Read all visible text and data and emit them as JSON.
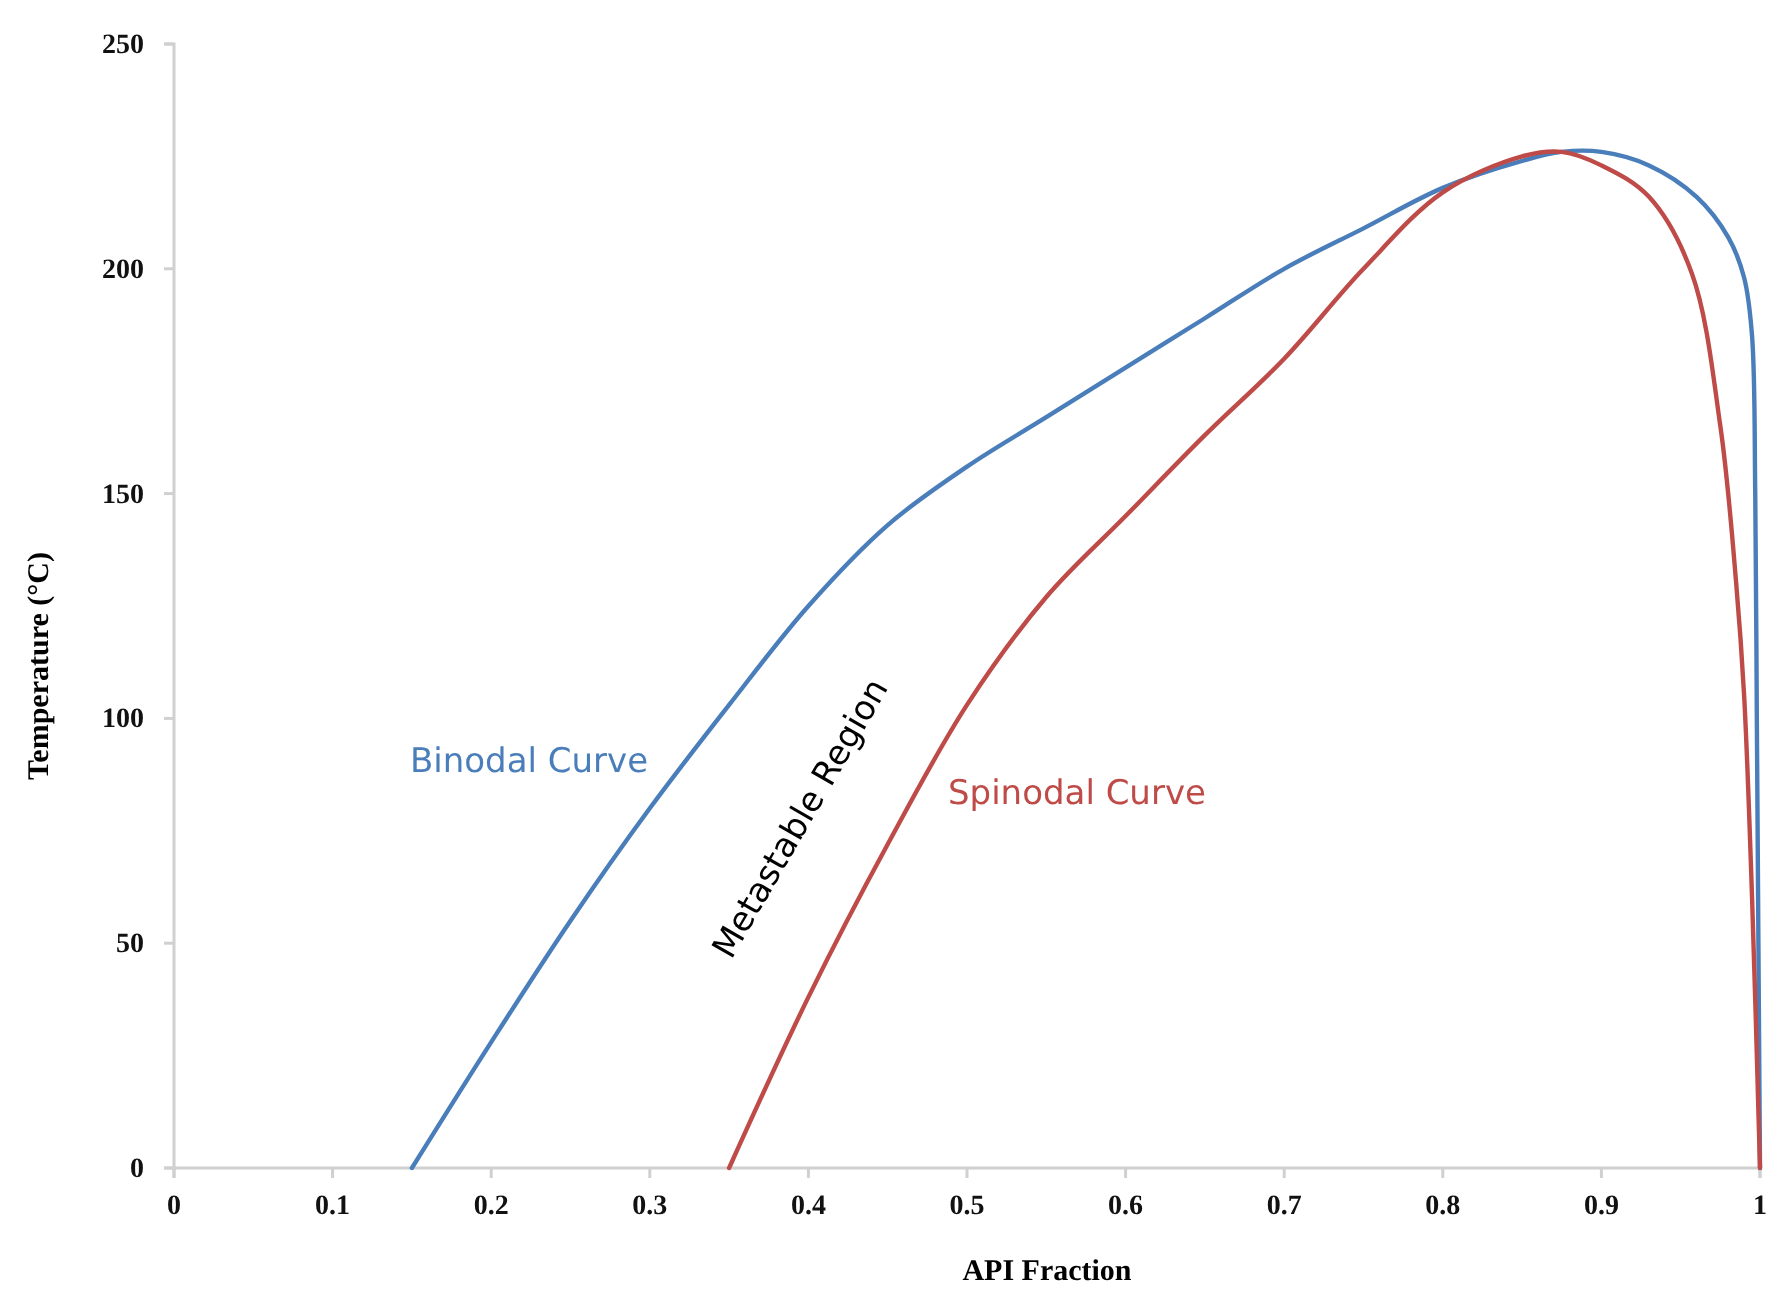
{
  "chart_data": {
    "type": "line",
    "xlabel": "API Fraction",
    "ylabel": "Temperature (°C)",
    "xlim": [
      0,
      1
    ],
    "xticks": [
      0,
      0.1,
      0.2,
      0.3,
      0.4,
      0.5,
      0.6,
      0.7,
      0.8,
      0.9,
      1
    ],
    "ylim": [
      0,
      250
    ],
    "yticks": [
      0,
      50,
      100,
      150,
      200,
      250
    ],
    "grid": false,
    "legend": false,
    "marker": "none",
    "line_style": "solid",
    "series": [
      {
        "name": "Binodal Curve",
        "color": "#4a7ebb",
        "x": [
          0.15,
          0.2,
          0.25,
          0.3,
          0.35,
          0.4,
          0.45,
          0.5,
          0.55,
          0.6,
          0.65,
          0.7,
          0.75,
          0.8,
          0.85,
          0.875,
          0.9,
          0.93,
          0.96,
          0.98,
          0.99,
          0.995,
          0.997,
          0.998,
          0.999,
          1
        ],
        "values": [
          0,
          28,
          55,
          80,
          103,
          125,
          143,
          156,
          167,
          178,
          189,
          200,
          209,
          218,
          224,
          226,
          226,
          223,
          216,
          207,
          198,
          185,
          150,
          100,
          50,
          0
        ]
      },
      {
        "name": "Spinodal Curve",
        "color": "#be4b48",
        "x": [
          0.35,
          0.4,
          0.45,
          0.5,
          0.55,
          0.6,
          0.65,
          0.7,
          0.75,
          0.8,
          0.85,
          0.875,
          0.9,
          0.93,
          0.957,
          0.975,
          0.985,
          0.99,
          0.995,
          1
        ],
        "values": [
          0,
          38,
          72,
          103,
          127,
          145,
          163,
          180,
          200,
          217,
          225,
          226,
          223,
          216,
          199,
          165,
          130,
          105,
          60,
          0
        ]
      }
    ],
    "annotations": [
      "Metastable Region"
    ]
  }
}
